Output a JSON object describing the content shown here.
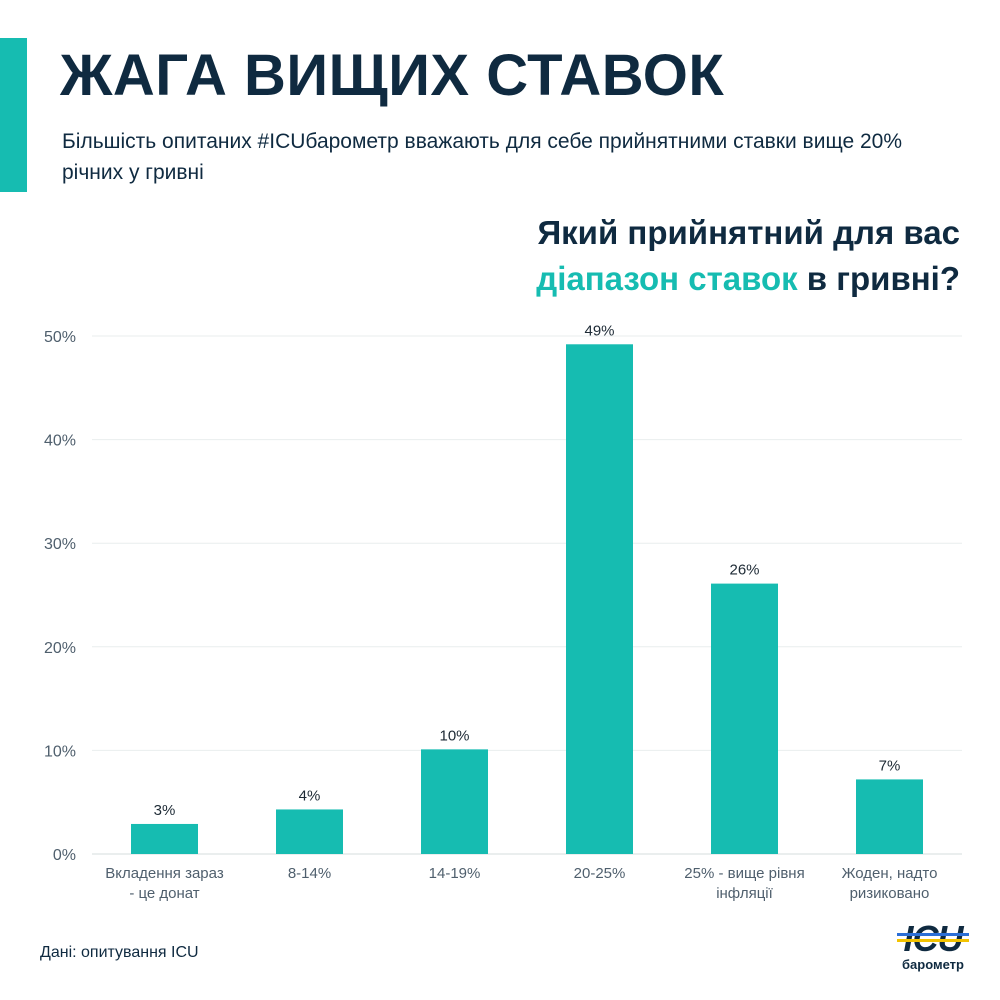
{
  "header": {
    "title": "ЖАГА ВИЩИХ СТАВОК",
    "subtitle": "Більшість опитаних #ICUбарометр вважають для себе прийнятними ставки вище 20% річних у гривні"
  },
  "question": {
    "line1": "Який прийнятний для вас",
    "highlight": "діапазон ставок",
    "rest": " в гривні?"
  },
  "footer": {
    "source": "Дані: опитування ICU",
    "logo_text": "ICU",
    "logo_sub": "барометр"
  },
  "colors": {
    "accent": "#16bcb1",
    "dark": "#0f2a40",
    "grid": "#e9eeee",
    "axis_text": "#4f5f6d",
    "logo_blue": "#2c6fd6",
    "logo_yellow": "#f3c300"
  },
  "chart_data": {
    "type": "bar",
    "title": "Який прийнятний для вас діапазон ставок в гривні?",
    "categories": [
      [
        "Вкладення зараз",
        "- це донат"
      ],
      [
        "8-14%"
      ],
      [
        "14-19%"
      ],
      [
        "20-25%"
      ],
      [
        "25% - вище рівня",
        "інфляції"
      ],
      [
        "Жоден, надто",
        "ризиковано"
      ]
    ],
    "values": [
      2.9,
      4.3,
      10.1,
      49.2,
      26.1,
      7.2
    ],
    "data_labels": [
      "3%",
      "4%",
      "10%",
      "49%",
      "26%",
      "7%"
    ],
    "ylim": [
      0,
      50
    ],
    "yticks": [
      0,
      10,
      20,
      30,
      40,
      50
    ],
    "ytick_labels": [
      "0%",
      "10%",
      "20%",
      "30%",
      "40%",
      "50%"
    ],
    "grid": true,
    "xlabel": "",
    "ylabel": ""
  }
}
